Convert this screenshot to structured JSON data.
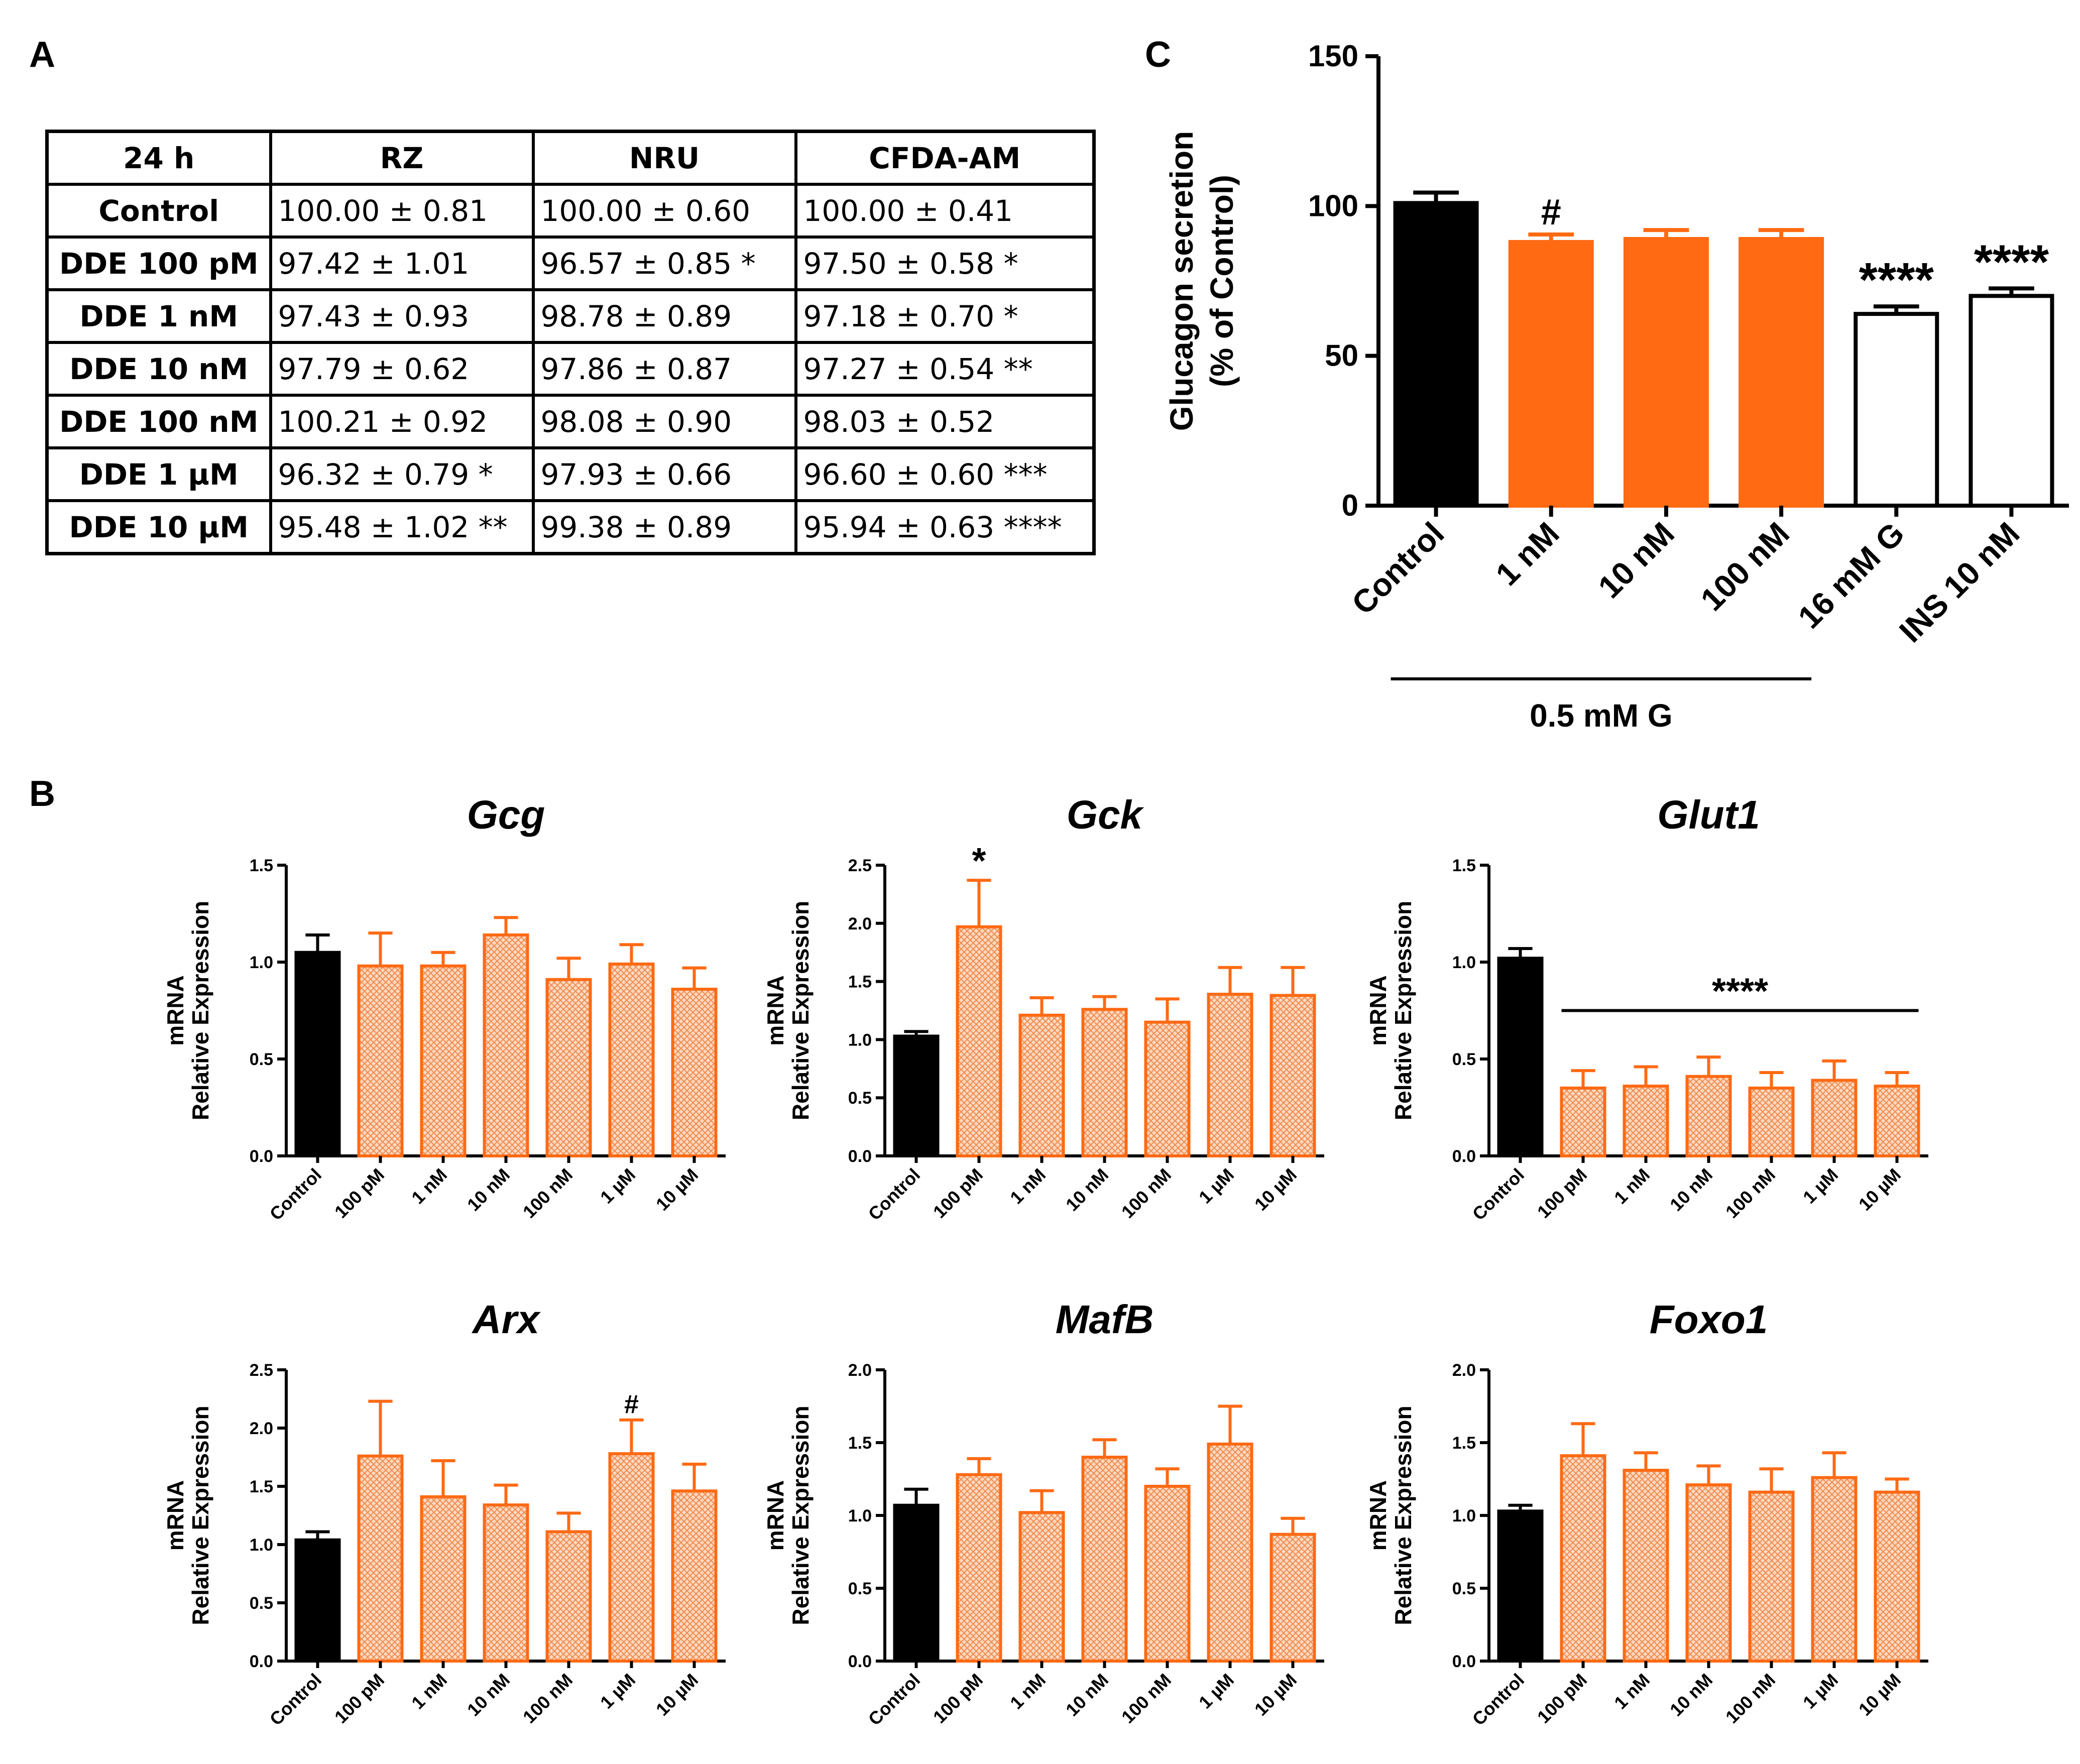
{
  "panel_labels": {
    "a": "A",
    "b": "B",
    "c": "C"
  },
  "colors": {
    "orange": "#FF6A13",
    "hatch_fill": "#F9C9A8",
    "black": "#000000",
    "white": "#FFFFFF"
  },
  "table": {
    "columns": [
      "24 h",
      "RZ",
      "NRU",
      "CFDA-AM"
    ],
    "rows": [
      {
        "label": "Control",
        "cells": [
          "100.00 ± 0.81",
          "100.00 ± 0.60",
          "100.00 ± 0.41"
        ]
      },
      {
        "label": "DDE 100 pM",
        "cells": [
          "97.42 ± 1.01",
          "96.57 ± 0.85 *",
          "97.50 ± 0.58 *"
        ]
      },
      {
        "label": "DDE 1 nM",
        "cells": [
          "97.43 ± 0.93",
          "98.78 ± 0.89",
          "97.18 ± 0.70 *"
        ]
      },
      {
        "label": "DDE 10 nM",
        "cells": [
          "97.79 ± 0.62",
          "97.86 ± 0.87",
          "97.27 ± 0.54 **"
        ]
      },
      {
        "label": "DDE 100 nM",
        "cells": [
          "100.21 ± 0.92",
          "98.08 ± 0.90",
          "98.03 ± 0.52"
        ]
      },
      {
        "label": "DDE 1 µM",
        "cells": [
          "96.32 ± 0.79 *",
          "97.93 ± 0.66",
          "96.60 ± 0.60 ***"
        ]
      },
      {
        "label": "DDE 10 µM",
        "cells": [
          "95.48 ± 1.02 **",
          "99.38 ± 0.89",
          "95.94 ± 0.63 ****"
        ]
      }
    ]
  },
  "chart_data": [
    {
      "id": "C",
      "type": "bar",
      "title": "",
      "xlabel": "",
      "ylabel_lines": [
        "Glucagon secretion",
        "(% of Control)"
      ],
      "ylim": [
        0,
        150
      ],
      "yticks": [
        0,
        50,
        100,
        150
      ],
      "categories": [
        "Control",
        "1 nM",
        "10 nM",
        "100 nM",
        "16 mM G",
        "INS 10 nM"
      ],
      "values": [
        101,
        88,
        89,
        89,
        64,
        70
      ],
      "errors": [
        3.5,
        2.5,
        3,
        3,
        2.5,
        2.5
      ],
      "styles": [
        "black",
        "orange",
        "orange",
        "orange",
        "white",
        "white"
      ],
      "annotations": [
        "",
        "#",
        "",
        "",
        "****",
        "****"
      ],
      "group_label": {
        "text": "0.5 mM G",
        "from": 0,
        "to": 3
      }
    },
    {
      "id": "B1",
      "type": "bar",
      "title": "Gcg",
      "ylabel_lines": [
        "mRNA",
        "Relative Expression"
      ],
      "ylim": [
        0,
        1.5
      ],
      "yticks": [
        "0.0",
        "0.5",
        "1.0",
        "1.5"
      ],
      "categories": [
        "Control",
        "100 pM",
        "1 nM",
        "10 nM",
        "100 nM",
        "1 µM",
        "10 µM"
      ],
      "values": [
        1.05,
        0.98,
        0.98,
        1.14,
        0.91,
        0.99,
        0.86
      ],
      "errors": [
        0.09,
        0.17,
        0.07,
        0.09,
        0.11,
        0.1,
        0.11
      ],
      "annotations": [
        "",
        "",
        "",
        "",
        "",
        "",
        ""
      ]
    },
    {
      "id": "B2",
      "type": "bar",
      "title": "Gck",
      "ylabel_lines": [
        "mRNA",
        "Relative Expression"
      ],
      "ylim": [
        0,
        2.5
      ],
      "yticks": [
        "0.0",
        "0.5",
        "1.0",
        "1.5",
        "2.0",
        "2.5"
      ],
      "categories": [
        "Control",
        "100 pM",
        "1 nM",
        "10 nM",
        "100 nM",
        "1 µM",
        "10 µM"
      ],
      "values": [
        1.03,
        1.97,
        1.21,
        1.26,
        1.15,
        1.39,
        1.38
      ],
      "errors": [
        0.04,
        0.4,
        0.15,
        0.11,
        0.2,
        0.23,
        0.24
      ],
      "annotations": [
        "",
        "*",
        "",
        "",
        "",
        "",
        ""
      ]
    },
    {
      "id": "B3",
      "type": "bar",
      "title": "Glut1",
      "ylabel_lines": [
        "mRNA",
        "Relative Expression"
      ],
      "ylim": [
        0,
        1.5
      ],
      "yticks": [
        "0.0",
        "0.5",
        "1.0",
        "1.5"
      ],
      "categories": [
        "Control",
        "100 pM",
        "1 nM",
        "10 nM",
        "100 nM",
        "1 µM",
        "10 µM"
      ],
      "values": [
        1.02,
        0.35,
        0.36,
        0.41,
        0.35,
        0.39,
        0.36
      ],
      "errors": [
        0.05,
        0.09,
        0.1,
        0.1,
        0.08,
        0.1,
        0.07
      ],
      "annotations": [
        "",
        "",
        "",
        "",
        "",
        "",
        ""
      ],
      "bracket": {
        "text": "****",
        "from": 1,
        "to": 6,
        "y": 0.75
      }
    },
    {
      "id": "B4",
      "type": "bar",
      "title": "Arx",
      "ylabel_lines": [
        "mRNA",
        "Relative Expression"
      ],
      "ylim": [
        0,
        2.5
      ],
      "yticks": [
        "0.0",
        "0.5",
        "1.0",
        "1.5",
        "2.0",
        "2.5"
      ],
      "categories": [
        "Control",
        "100 pM",
        "1 nM",
        "10 nM",
        "100 nM",
        "1 µM",
        "10 µM"
      ],
      "values": [
        1.04,
        1.76,
        1.41,
        1.34,
        1.11,
        1.78,
        1.46
      ],
      "errors": [
        0.07,
        0.47,
        0.31,
        0.17,
        0.16,
        0.29,
        0.23
      ],
      "annotations": [
        "",
        "",
        "",
        "",
        "",
        "#",
        ""
      ]
    },
    {
      "id": "B5",
      "type": "bar",
      "title": "MafB",
      "ylabel_lines": [
        "mRNA",
        "Relative Expression"
      ],
      "ylim": [
        0,
        2.0
      ],
      "yticks": [
        "0.0",
        "0.5",
        "1.0",
        "1.5",
        "2.0"
      ],
      "categories": [
        "Control",
        "100 pM",
        "1 nM",
        "10 nM",
        "100 nM",
        "1 µM",
        "10 µM"
      ],
      "values": [
        1.07,
        1.28,
        1.02,
        1.4,
        1.2,
        1.49,
        0.87
      ],
      "errors": [
        0.11,
        0.11,
        0.15,
        0.12,
        0.12,
        0.26,
        0.11
      ],
      "annotations": [
        "",
        "",
        "",
        "",
        "",
        "",
        ""
      ]
    },
    {
      "id": "B6",
      "type": "bar",
      "title": "Foxo1",
      "ylabel_lines": [
        "mRNA",
        "Relative Expression"
      ],
      "ylim": [
        0,
        2.0
      ],
      "yticks": [
        "0.0",
        "0.5",
        "1.0",
        "1.5",
        "2.0"
      ],
      "categories": [
        "Control",
        "100 pM",
        "1 nM",
        "10 nM",
        "100 nM",
        "1 µM",
        "10 µM"
      ],
      "values": [
        1.03,
        1.41,
        1.31,
        1.21,
        1.16,
        1.26,
        1.16
      ],
      "errors": [
        0.04,
        0.22,
        0.12,
        0.13,
        0.16,
        0.17,
        0.09
      ],
      "annotations": [
        "",
        "",
        "",
        "",
        "",
        "",
        ""
      ]
    }
  ]
}
